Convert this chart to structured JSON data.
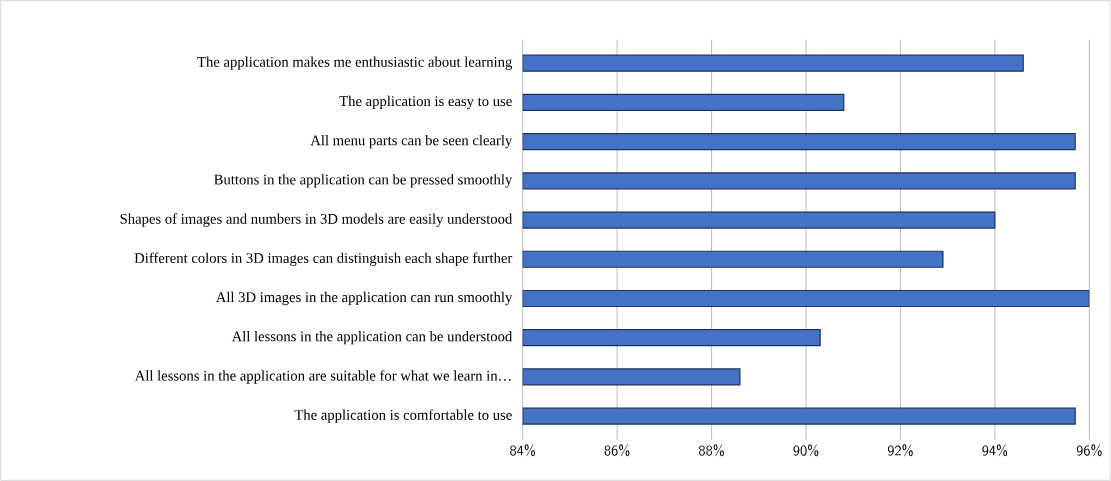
{
  "chart_data": {
    "type": "bar",
    "orientation": "horizontal",
    "categories": [
      "The application makes me enthusiastic about learning",
      "The application is easy to use",
      "All menu parts can be seen clearly",
      "Buttons in the application can be pressed smoothly",
      "Shapes of images and numbers in 3D models are easily understood",
      "Different colors in 3D images can distinguish each shape further",
      "All 3D images in the application can run smoothly",
      "All lessons in the application can be understood",
      "All lessons in the application are suitable for what we learn in…",
      "The application is comfortable to use"
    ],
    "values": [
      94.6,
      90.8,
      95.7,
      95.7,
      94.0,
      92.9,
      96.0,
      90.3,
      88.6,
      95.7
    ],
    "color": "#4472c4",
    "xlim": [
      84,
      96
    ],
    "xticks": [
      {
        "value": 84,
        "label": "84%"
      },
      {
        "value": 86,
        "label": "86%"
      },
      {
        "value": 88,
        "label": "88%"
      },
      {
        "value": 90,
        "label": "90%"
      },
      {
        "value": 92,
        "label": "92%"
      },
      {
        "value": 94,
        "label": "94%"
      },
      {
        "value": 96,
        "label": "96%"
      }
    ],
    "grid": "x"
  }
}
